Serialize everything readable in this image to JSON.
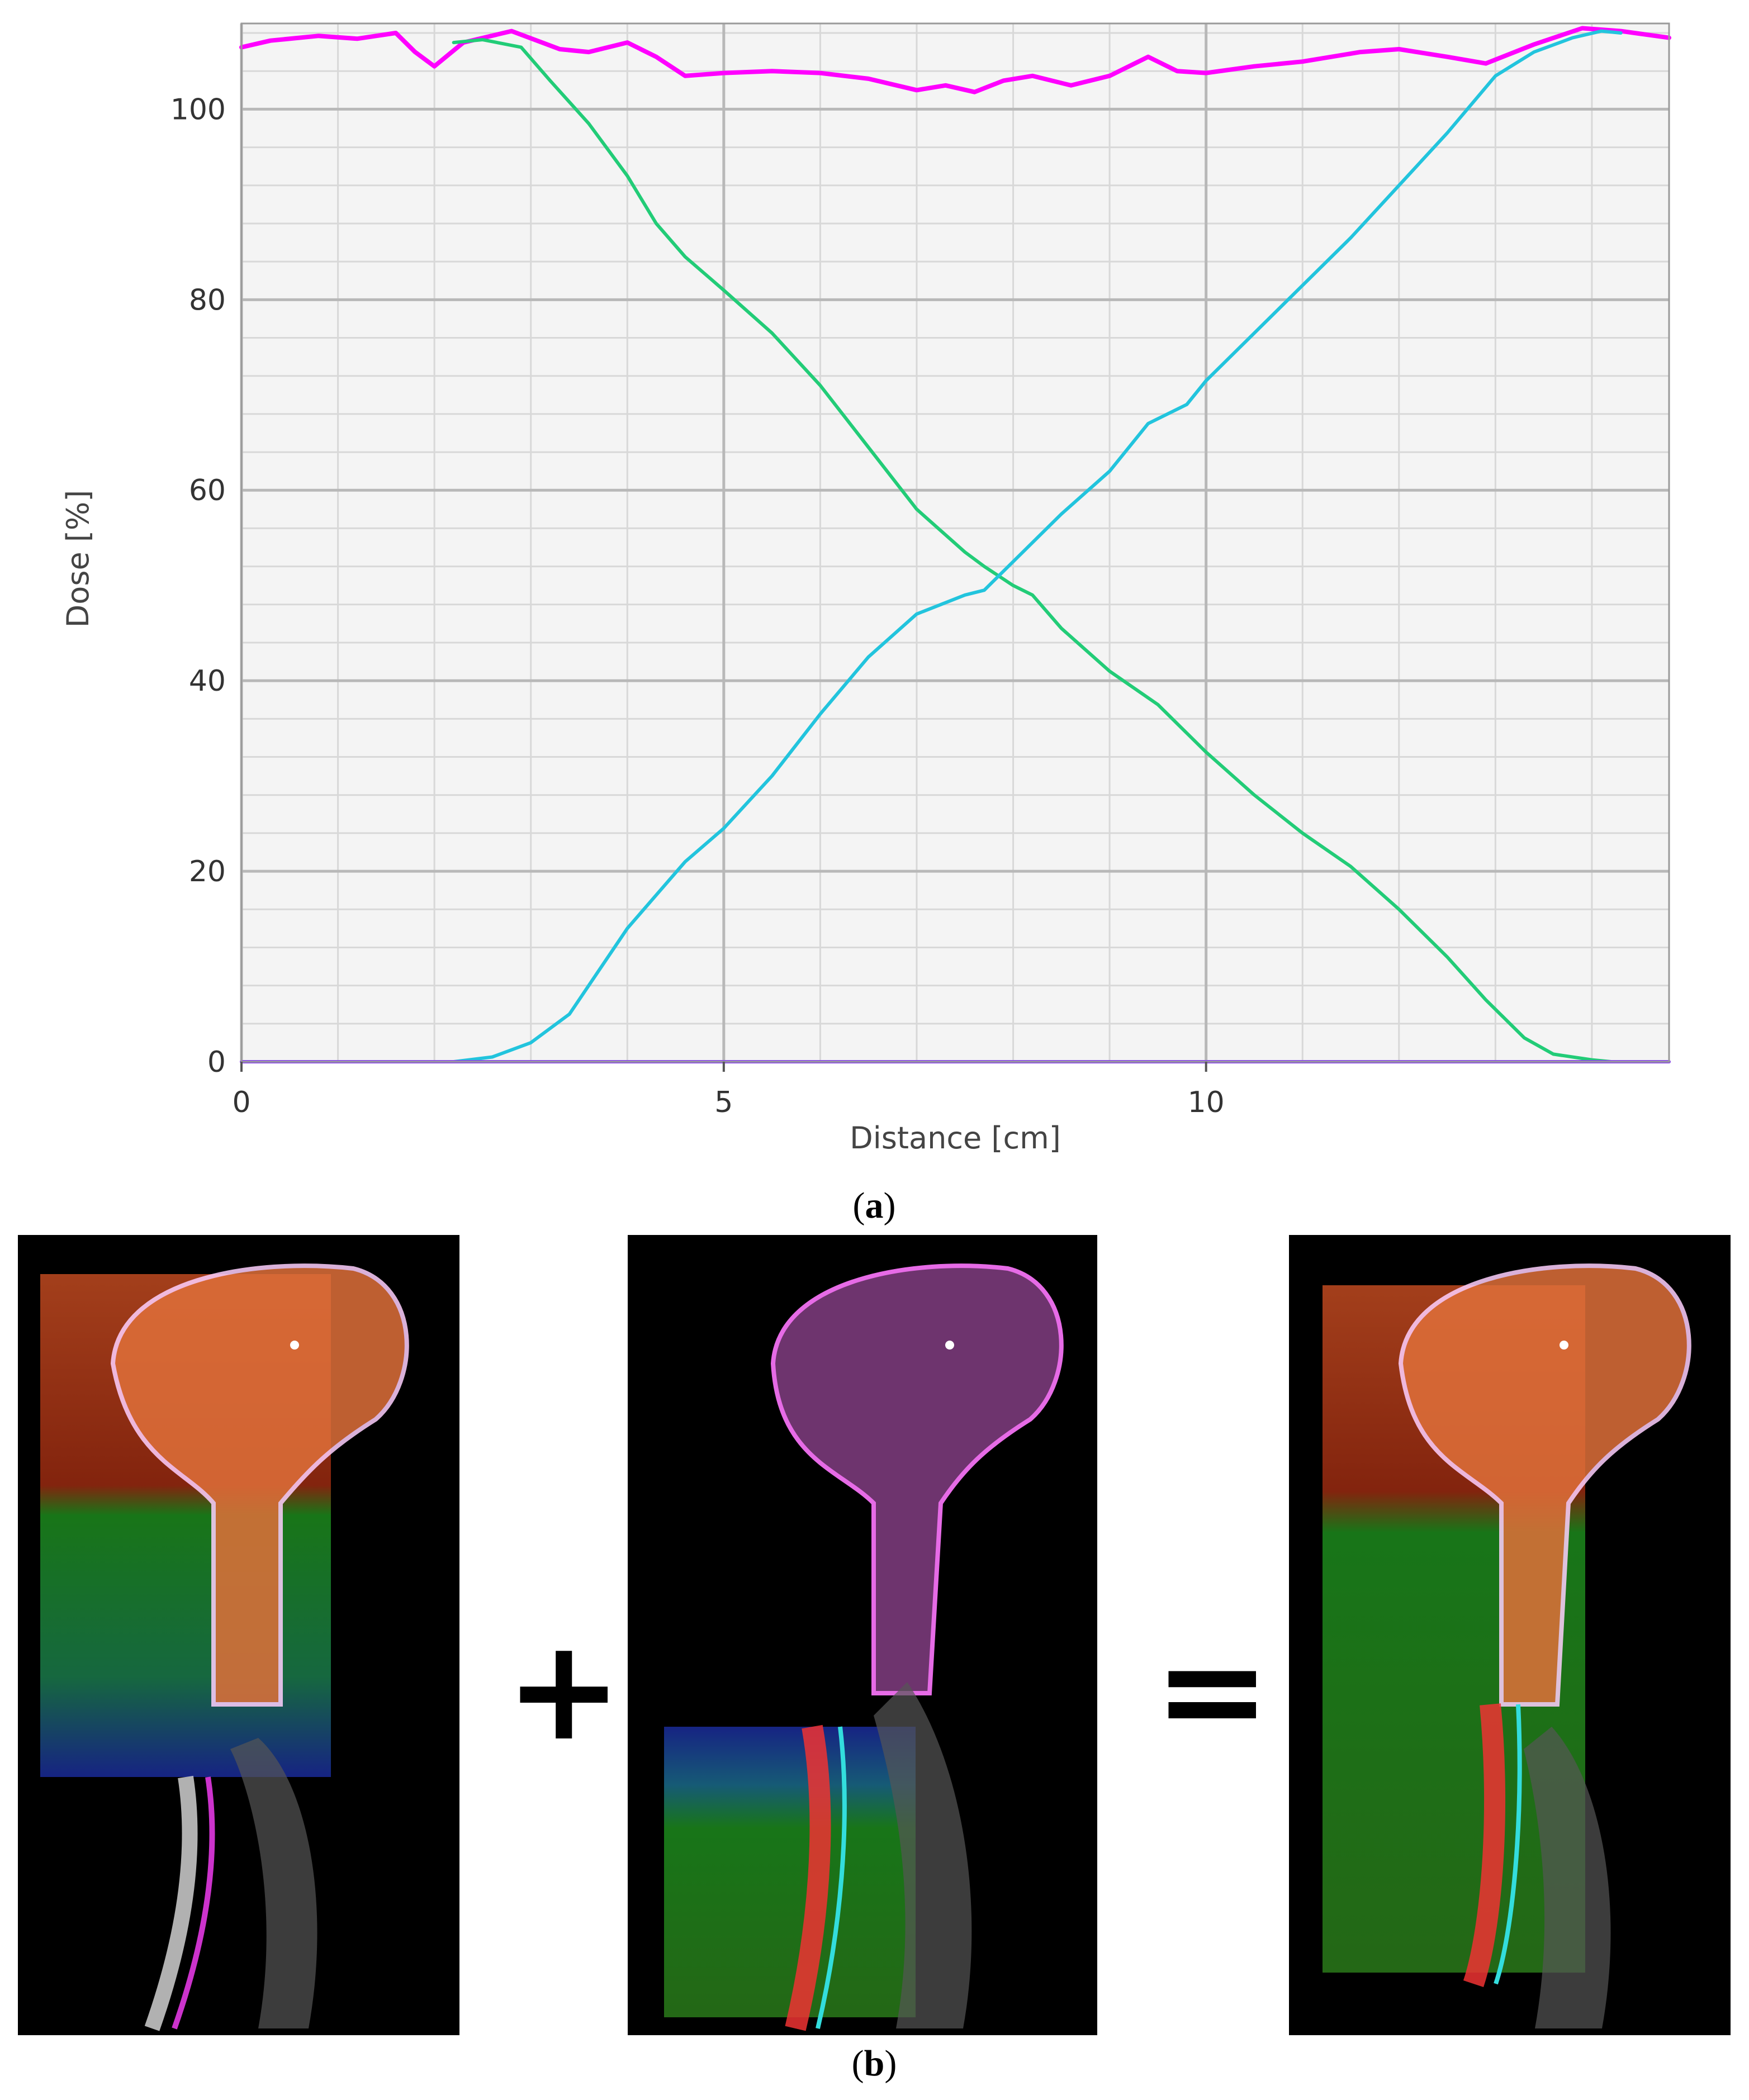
{
  "figure": {
    "panel_a_label": "a",
    "panel_b_label": "b",
    "operators": [
      "+",
      "="
    ]
  },
  "images": {
    "panel_1": "sagittal CT with upper (cranial) field dose wash",
    "panel_2": "sagittal CT with lower (spinal) field dose wash",
    "panel_3": "sagittal CT with summed dose wash"
  },
  "chart_data": {
    "type": "line",
    "title": "",
    "xlabel": "Distance [cm]",
    "ylabel": "Dose [%]",
    "xlim": [
      0,
      14.8
    ],
    "ylim": [
      0,
      109
    ],
    "xticks": [
      0,
      5,
      10
    ],
    "yticks": [
      0,
      20,
      40,
      60,
      80,
      100
    ],
    "grid": true,
    "legend": "none",
    "series": [
      {
        "color": "#ff00ff",
        "x": [
          0,
          0.3,
          0.8,
          1.2,
          1.6,
          1.8,
          2.0,
          2.3,
          2.8,
          3.3,
          3.6,
          4.0,
          4.3,
          4.6,
          5.0,
          5.5,
          6.0,
          6.5,
          7.0,
          7.3,
          7.6,
          7.9,
          8.2,
          8.6,
          9.0,
          9.4,
          9.7,
          10.0,
          10.5,
          11.0,
          11.6,
          12.0,
          12.5,
          12.9,
          13.4,
          13.9,
          14.3,
          14.8
        ],
        "y": [
          106.5,
          107.2,
          107.7,
          107.4,
          108.0,
          106.0,
          104.5,
          107.0,
          108.2,
          106.3,
          106.0,
          107.0,
          105.5,
          103.5,
          103.8,
          104.0,
          103.8,
          103.2,
          102.0,
          102.5,
          101.8,
          103.0,
          103.5,
          102.5,
          103.5,
          105.5,
          104.0,
          103.8,
          104.5,
          105.0,
          106.0,
          106.3,
          105.5,
          104.8,
          106.8,
          108.5,
          108.2,
          107.5
        ]
      },
      {
        "color": "#22cc77",
        "x": [
          2.2,
          2.5,
          2.9,
          3.2,
          3.6,
          4.0,
          4.3,
          4.6,
          5.0,
          5.5,
          6.0,
          6.5,
          7.0,
          7.5,
          7.7,
          8.0,
          8.2,
          8.5,
          9.0,
          9.5,
          10.0,
          10.5,
          11.0,
          11.5,
          12.0,
          12.5,
          12.9,
          13.3,
          13.6,
          14.0,
          14.2
        ],
        "y": [
          107.0,
          107.3,
          106.5,
          103.0,
          98.5,
          93.0,
          88.0,
          84.5,
          81.0,
          76.5,
          71.0,
          64.5,
          58.0,
          53.5,
          52.0,
          50.0,
          49.0,
          45.5,
          41.0,
          37.5,
          32.5,
          28.0,
          24.0,
          20.5,
          16.0,
          11.0,
          6.5,
          2.5,
          0.8,
          0.2,
          0.0
        ]
      },
      {
        "color": "#22c4dd",
        "x": [
          2.2,
          2.6,
          3.0,
          3.4,
          3.7,
          4.0,
          4.3,
          4.6,
          5.0,
          5.5,
          6.0,
          6.5,
          7.0,
          7.5,
          7.7,
          8.0,
          8.5,
          9.0,
          9.4,
          9.8,
          10.0,
          10.5,
          11.0,
          11.5,
          12.0,
          12.5,
          13.0,
          13.4,
          13.8,
          14.1,
          14.3
        ],
        "y": [
          0.0,
          0.5,
          2.0,
          5.0,
          9.5,
          14.0,
          17.5,
          21.0,
          24.5,
          30.0,
          36.5,
          42.5,
          47.0,
          49.0,
          49.5,
          52.5,
          57.5,
          62.0,
          67.0,
          69.0,
          71.5,
          76.5,
          81.5,
          86.5,
          92.0,
          97.5,
          103.5,
          106.0,
          107.5,
          108.2,
          108.0
        ]
      },
      {
        "color": "#8844ee",
        "x": [
          0,
          14.8
        ],
        "y": [
          0,
          0
        ]
      }
    ]
  }
}
